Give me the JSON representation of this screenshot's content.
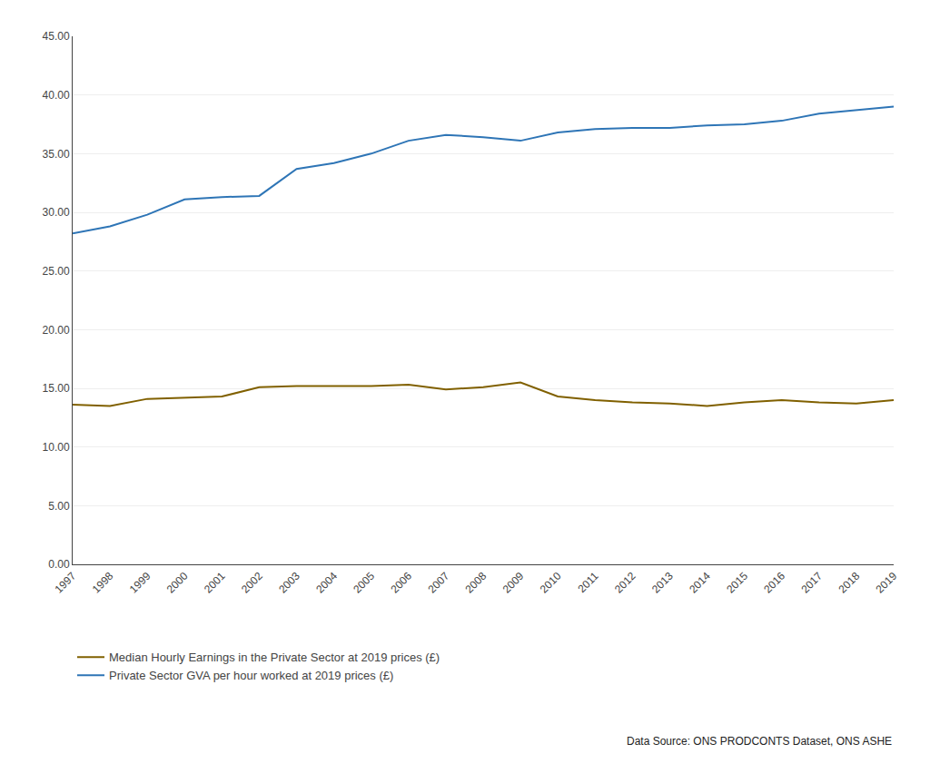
{
  "chart_data": {
    "type": "line",
    "x": [
      1997,
      1998,
      1999,
      2000,
      2001,
      2002,
      2003,
      2004,
      2005,
      2006,
      2007,
      2008,
      2009,
      2010,
      2011,
      2012,
      2013,
      2014,
      2015,
      2016,
      2017,
      2018,
      2019
    ],
    "series": [
      {
        "name": "Median Hourly Earnings in the Private Sector at 2019 prices (£)",
        "color": "#806000",
        "values": [
          13.6,
          13.5,
          14.1,
          14.2,
          14.3,
          15.1,
          15.2,
          15.2,
          15.2,
          15.3,
          14.9,
          15.1,
          15.5,
          14.3,
          14.0,
          13.8,
          13.7,
          13.5,
          13.8,
          14.0,
          13.8,
          13.7,
          14.0
        ]
      },
      {
        "name": "Private Sector GVA per hour worked at 2019 prices (£)",
        "color": "#2e75b6",
        "values": [
          28.2,
          28.8,
          29.8,
          31.1,
          31.3,
          31.4,
          33.7,
          34.2,
          35.0,
          36.1,
          36.6,
          36.4,
          36.1,
          36.8,
          37.1,
          37.2,
          37.2,
          37.4,
          37.5,
          37.8,
          38.4,
          38.7,
          39.0
        ]
      }
    ],
    "xlim": [
      1997,
      2019
    ],
    "xticks": [
      1997,
      1998,
      1999,
      2000,
      2001,
      2002,
      2003,
      2004,
      2005,
      2006,
      2007,
      2008,
      2009,
      2010,
      2011,
      2012,
      2013,
      2014,
      2015,
      2016,
      2017,
      2018,
      2019
    ],
    "ylim": [
      0,
      45
    ],
    "yticks": [
      {
        "value": 0,
        "label": "0.00"
      },
      {
        "value": 5,
        "label": "5.00"
      },
      {
        "value": 10,
        "label": "10.00"
      },
      {
        "value": 15,
        "label": "15.00"
      },
      {
        "value": 20,
        "label": "20.00"
      },
      {
        "value": 25,
        "label": "25.00"
      },
      {
        "value": 30,
        "label": "30.00"
      },
      {
        "value": 35,
        "label": "35.00"
      },
      {
        "value": 40,
        "label": "40.00"
      },
      {
        "value": 45,
        "label": "45.00"
      }
    ],
    "grid": "y",
    "legend": "bottom",
    "annotations": [
      "Data Source: ONS PRODCONTS Dataset, ONS ASHE"
    ]
  }
}
